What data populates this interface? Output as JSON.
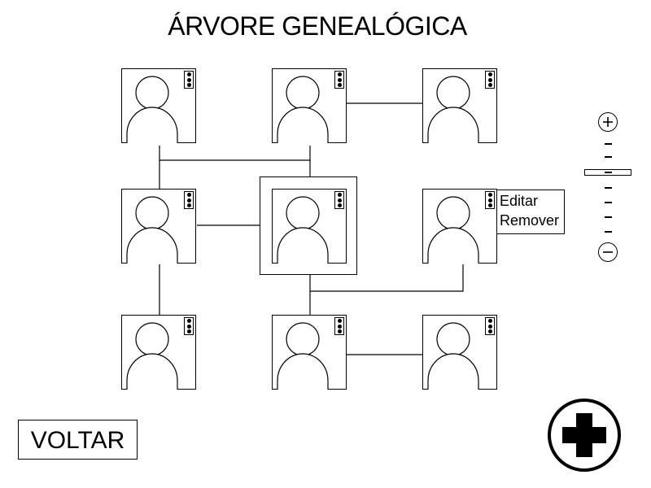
{
  "page": {
    "title": "ÁRVORE GENEALÓGICA"
  },
  "tree": {
    "nodes": [
      {
        "id": "r1c1",
        "row": 1,
        "col": 1,
        "icon": "person-icon"
      },
      {
        "id": "r1c2",
        "row": 1,
        "col": 2,
        "icon": "person-icon"
      },
      {
        "id": "r1c3",
        "row": 1,
        "col": 3,
        "icon": "person-icon"
      },
      {
        "id": "r2c1",
        "row": 2,
        "col": 1,
        "icon": "person-icon"
      },
      {
        "id": "r2c2",
        "row": 2,
        "col": 2,
        "icon": "person-icon",
        "selected": true
      },
      {
        "id": "r2c3",
        "row": 2,
        "col": 3,
        "icon": "person-icon",
        "menu_open": true
      },
      {
        "id": "r3c1",
        "row": 3,
        "col": 1,
        "icon": "person-icon"
      },
      {
        "id": "r3c2",
        "row": 3,
        "col": 2,
        "icon": "person-icon"
      },
      {
        "id": "r3c3",
        "row": 3,
        "col": 3,
        "icon": "person-icon"
      }
    ]
  },
  "context_menu": {
    "edit_label": "Editar",
    "remove_label": "Remover"
  },
  "zoom": {
    "plus_icon": "plus-circle-icon",
    "minus_icon": "minus-circle-icon",
    "level_index": 3,
    "step_count": 7
  },
  "actions": {
    "back_label": "VOLTAR",
    "add_icon": "plus-icon"
  },
  "colors": {
    "line": "#000000",
    "background": "#ffffff"
  }
}
